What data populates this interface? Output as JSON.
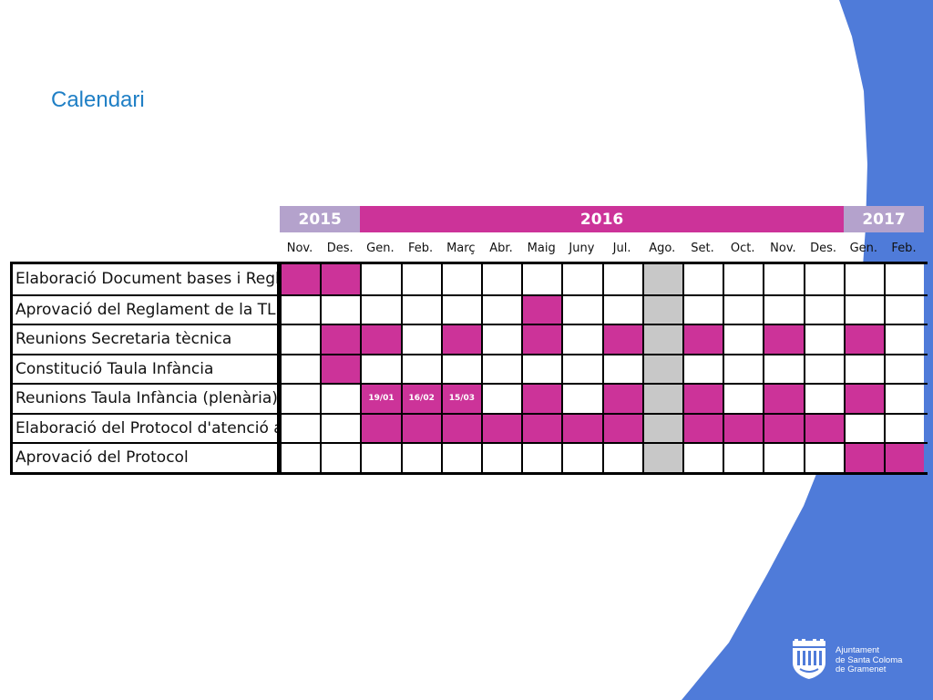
{
  "slide": {
    "title": "Calendari"
  },
  "colors": {
    "active": "#cc3399",
    "august": "#c8c8c8",
    "year_2015": "#b4a2cc",
    "year_2016": "#cc3399",
    "year_2017": "#b4a2cc",
    "title": "#1f7fc5",
    "side_band": "#4f7bd9"
  },
  "years": [
    {
      "label": "2015",
      "months": 2
    },
    {
      "label": "2016",
      "months": 12
    },
    {
      "label": "2017",
      "months": 2
    }
  ],
  "months": [
    "Nov.",
    "Des.",
    "Gen.",
    "Feb.",
    "Març",
    "Abr.",
    "Maig",
    "Juny",
    "Jul.",
    "Ago.",
    "Set.",
    "Oct.",
    "Nov.",
    "Des.",
    "Gen.",
    "Feb."
  ],
  "rows": [
    {
      "label": "Elaboració Document bases i Reglament",
      "active": [
        0,
        1
      ],
      "cell_text": {}
    },
    {
      "label": "Aprovació del Reglament de la TLI",
      "active": [
        6
      ],
      "cell_text": {}
    },
    {
      "label": "Reunions Secretaria tècnica",
      "active": [
        1,
        2,
        4,
        6,
        8,
        10,
        12,
        14
      ],
      "cell_text": {}
    },
    {
      "label": "Constitució Taula Infància",
      "active": [
        1
      ],
      "cell_text": {}
    },
    {
      "label": "Reunions Taula Infància (plenària)",
      "active": [
        2,
        3,
        4,
        6,
        8,
        10,
        12,
        14
      ],
      "cell_text": {
        "2": "19/01",
        "3": "16/02",
        "4": "15/03"
      }
    },
    {
      "label": "Elaboració del Protocol d'atenció a la",
      "active": [
        2,
        3,
        4,
        5,
        6,
        7,
        8,
        10,
        11,
        12,
        13
      ],
      "cell_text": {}
    },
    {
      "label": "Aprovació del Protocol",
      "active": [
        14,
        15
      ],
      "cell_text": {}
    }
  ],
  "grey_column": 9,
  "footer": {
    "logo_icon": "coat-of-arms-icon",
    "logo_lines": [
      "Ajuntament",
      "de Santa Coloma",
      "de Gramenet"
    ]
  }
}
